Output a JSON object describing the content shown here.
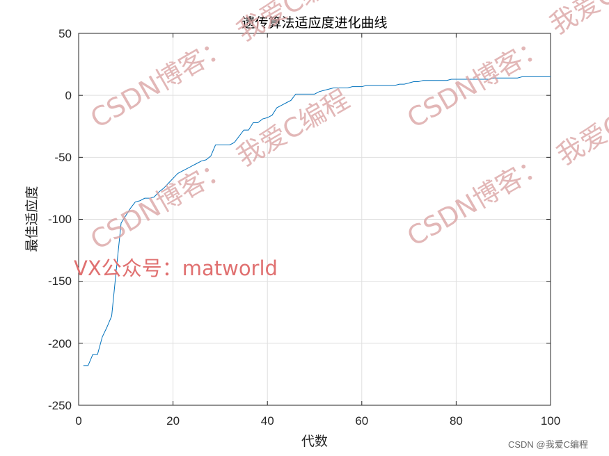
{
  "chart_data": {
    "type": "line",
    "title": "遗传算法适应度进化曲线",
    "xlabel": "代数",
    "ylabel": "最佳适应度",
    "xlim": [
      0,
      100
    ],
    "ylim": [
      -250,
      50
    ],
    "x_ticks": [
      "0",
      "20",
      "40",
      "60",
      "80",
      "100"
    ],
    "y_ticks": [
      "50",
      "0",
      "-50",
      "-100",
      "-150",
      "-200",
      "-250"
    ],
    "grid": true,
    "line_color": "#0072bd",
    "x": [
      1,
      2,
      3,
      4,
      5,
      6,
      7,
      8,
      9,
      10,
      11,
      12,
      13,
      14,
      15,
      16,
      17,
      18,
      19,
      20,
      21,
      22,
      23,
      24,
      25,
      26,
      27,
      28,
      29,
      30,
      31,
      32,
      33,
      34,
      35,
      36,
      37,
      38,
      39,
      40,
      41,
      42,
      43,
      44,
      45,
      46,
      47,
      48,
      49,
      50,
      51,
      52,
      53,
      54,
      55,
      56,
      57,
      58,
      59,
      60,
      61,
      62,
      63,
      64,
      65,
      66,
      67,
      68,
      69,
      70,
      71,
      72,
      73,
      74,
      75,
      76,
      77,
      78,
      79,
      80,
      81,
      82,
      83,
      84,
      85,
      86,
      87,
      88,
      89,
      90,
      91,
      92,
      93,
      94,
      95,
      96,
      97,
      98,
      99,
      100
    ],
    "y": [
      -218,
      -218,
      -209,
      -209,
      -195,
      -187,
      -178,
      -140,
      -103,
      -97,
      -91,
      -86,
      -85,
      -83,
      -83,
      -82,
      -78,
      -75,
      -71,
      -67,
      -63,
      -61,
      -59,
      -57,
      -55,
      -53,
      -52,
      -49,
      -40,
      -40,
      -40,
      -40,
      -38,
      -33,
      -28,
      -28,
      -22,
      -22,
      -19,
      -18,
      -16,
      -10,
      -8,
      -6,
      -4,
      1,
      1,
      1,
      1,
      1,
      3,
      4,
      5,
      6,
      6,
      6,
      6,
      7,
      7,
      7,
      8,
      8,
      8,
      8,
      8,
      8,
      8,
      9,
      9,
      10,
      11,
      11,
      12,
      12,
      12,
      12,
      12,
      12,
      13,
      13,
      13,
      13,
      13,
      13,
      13,
      13,
      13,
      14,
      14,
      14,
      14,
      14,
      14,
      15,
      15,
      15,
      15,
      15,
      15,
      15
    ]
  },
  "watermarks": {
    "csdn_blog": "CSDN博客：",
    "csdn_blog_alt": "CSDN博客：我爱C编",
    "love_c": "我爱C编程",
    "love_c_short": "我爱C编",
    "vx": "VX公众号：matworld",
    "footer": "CSDN @我爱C编程"
  }
}
